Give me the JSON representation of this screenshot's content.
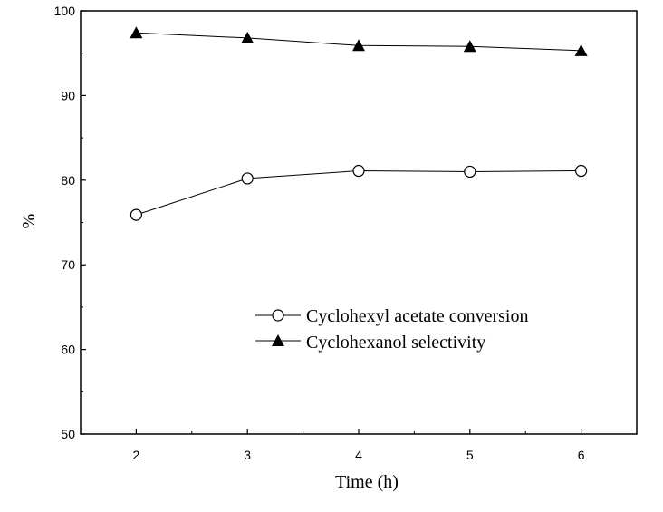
{
  "chart_data": {
    "type": "line",
    "title": "",
    "xlabel": "Time (h)",
    "ylabel": "%",
    "x": [
      2,
      3,
      4,
      5,
      6
    ],
    "xlim": [
      1.5,
      6.5
    ],
    "ylim": [
      50,
      100
    ],
    "xticks": [
      2,
      3,
      4,
      5,
      6
    ],
    "yticks": [
      50,
      60,
      70,
      80,
      90,
      100
    ],
    "grid": false,
    "legend_position": "center-right",
    "series": [
      {
        "name": "Cyclohexyl acetate conversion",
        "marker": "open-circle",
        "values": [
          75.9,
          80.2,
          81.1,
          81.0,
          81.1
        ]
      },
      {
        "name": "Cyclohexanol selectivity",
        "marker": "filled-triangle",
        "values": [
          97.4,
          96.8,
          95.9,
          95.8,
          95.3
        ]
      }
    ]
  }
}
